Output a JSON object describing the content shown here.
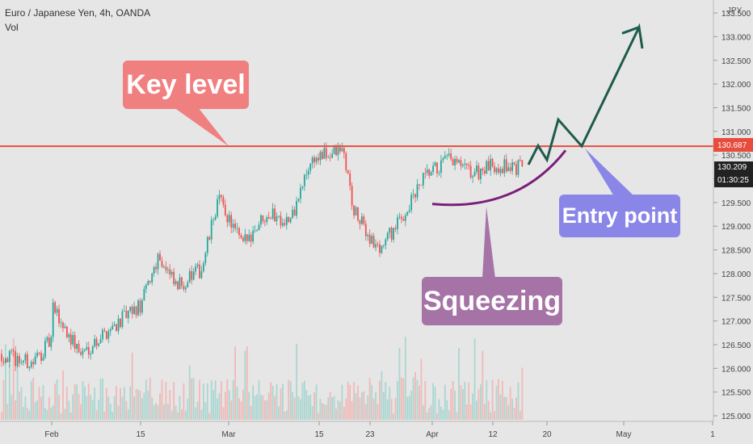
{
  "header": {
    "title": "Euro / Japanese Yen, 4h, OANDA",
    "volume_label": "Vol",
    "currency": "JPY"
  },
  "colors": {
    "bg": "#e6e6e6",
    "up": "#26a69a",
    "down": "#ef5350",
    "key_level": "#e74c3c",
    "squeeze": "#7b1f7a",
    "projection": "#1e5b4c"
  },
  "chart_data": {
    "type": "candlestick",
    "y_axis": {
      "ticks": [
        "125.000",
        "125.500",
        "126.000",
        "126.500",
        "127.000",
        "127.500",
        "128.000",
        "128.500",
        "129.000",
        "129.500",
        "130.000",
        "130.500",
        "131.000",
        "131.500",
        "132.000",
        "132.500",
        "133.000",
        "133.500"
      ],
      "range": [
        125.0,
        133.5
      ]
    },
    "x_axis": {
      "ticks": [
        "Feb",
        "15",
        "Mar",
        "15",
        "23",
        "Apr",
        "12",
        "20",
        "May",
        "1"
      ]
    },
    "price_path": [
      [
        "Jan 28",
        126.3
      ],
      [
        "Feb 1",
        126.1
      ],
      [
        "Feb 3",
        126.6
      ],
      [
        "Feb 5",
        127.3
      ],
      [
        "Feb 9",
        126.3
      ],
      [
        "Feb 12",
        126.9
      ],
      [
        "Feb 15",
        127.3
      ],
      [
        "Feb 18",
        128.4
      ],
      [
        "Feb 22",
        127.7
      ],
      [
        "Feb 26",
        128.1
      ],
      [
        "Mar 1",
        129.6
      ],
      [
        "Mar 4",
        128.6
      ],
      [
        "Mar 8",
        129.3
      ],
      [
        "Mar 12",
        129.1
      ],
      [
        "Mar 15",
        130.4
      ],
      [
        "Mar 18",
        130.6
      ],
      [
        "Mar 22",
        129.3
      ],
      [
        "Mar 24",
        128.5
      ],
      [
        "Mar 28",
        129.1
      ],
      [
        "Apr 1",
        130.0
      ],
      [
        "Apr 5",
        130.4
      ],
      [
        "Apr 8",
        130.1
      ],
      [
        "Apr 12",
        130.3
      ],
      [
        "Apr 16",
        130.2
      ]
    ],
    "key_level": {
      "value": 130.687,
      "label": "130.687"
    },
    "current_price": {
      "value": 130.209,
      "label": "130.209",
      "countdown": "01:30:25"
    },
    "annotations": [
      {
        "text": "Key level",
        "color": "#f07f7f"
      },
      {
        "text": "Squeezing",
        "color": "#a673a7"
      },
      {
        "text": "Entry point",
        "color": "#8a86e8"
      }
    ]
  }
}
